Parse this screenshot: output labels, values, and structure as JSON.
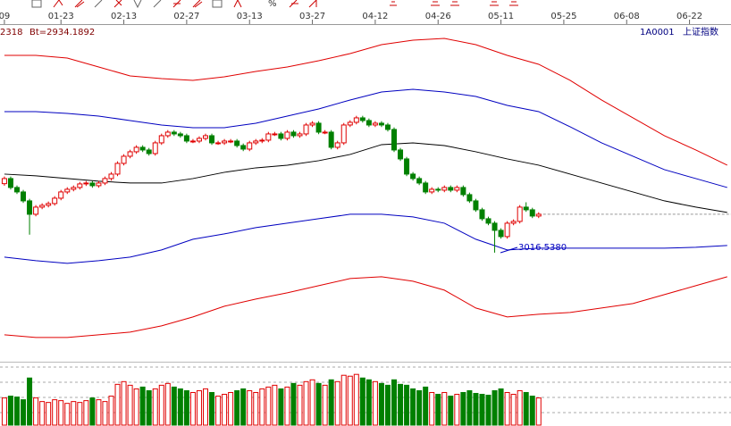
{
  "chart_data": {
    "type": "candlestick",
    "toolbar_label": "%",
    "left_code": "2318",
    "info": "Bt=2934.1892",
    "symbol": "1A0001",
    "name": "上证指数",
    "annotation": "3016.5380",
    "xlim": [
      -0.7,
      115.6
    ],
    "ylim": [
      2302,
      3622
    ],
    "vlim": [
      0,
      70
    ],
    "xticks": [
      {
        "value": 0,
        "label": "09"
      },
      {
        "value": 9,
        "label": "01-23"
      },
      {
        "value": 19,
        "label": "02-13"
      },
      {
        "value": 29,
        "label": "02-27"
      },
      {
        "value": 39,
        "label": "03-13"
      },
      {
        "value": 49,
        "label": "03-27"
      },
      {
        "value": 59,
        "label": "04-12"
      },
      {
        "value": 69,
        "label": "04-26"
      },
      {
        "value": 79,
        "label": "05-11"
      },
      {
        "value": 89,
        "label": "05-25"
      },
      {
        "value": 99,
        "label": "06-08"
      },
      {
        "value": 109,
        "label": "06-22"
      }
    ],
    "up_color": "#e00000",
    "down_color": "#008000",
    "open": [
      3000,
      3020,
      2985,
      2967.5,
      2932.5,
      2880,
      2908,
      2915,
      2922,
      2943,
      2967.5,
      2978,
      2985,
      2999,
      3002.5,
      2992,
      3002.5,
      3020,
      3037.5,
      3079.5,
      3107.5,
      3125,
      3142.5,
      3132,
      3118,
      3160,
      3188,
      3202,
      3195,
      3188,
      3167,
      3167,
      3177.5,
      3188,
      3160,
      3160,
      3167,
      3167,
      3149.5,
      3135.5,
      3160,
      3167,
      3170.5,
      3195,
      3195,
      3177.5,
      3202,
      3188,
      3195,
      3230,
      3237,
      3202,
      3202,
      3142.5,
      3160,
      3230,
      3240.5,
      3258,
      3247.5,
      3230,
      3237,
      3230,
      3212.5,
      3132,
      3097,
      3037.5,
      3020,
      3002.5,
      2967.5,
      2978,
      2974.5,
      2985,
      2974.5,
      2985,
      2957,
      2932.5,
      2897.5,
      2862.5,
      2845,
      2817,
      2792.5,
      2845,
      2852,
      2908,
      2897.5,
      2873
    ],
    "high": [
      3028,
      3028,
      2993,
      2975.5,
      2940.5,
      2916,
      2923,
      2930,
      2951,
      2975.5,
      2986,
      2993,
      3007,
      3010.5,
      3010.5,
      3010.5,
      3028,
      3045.5,
      3087.5,
      3115.5,
      3133,
      3150.5,
      3150.5,
      3140,
      3168,
      3196,
      3210,
      3210,
      3203,
      3196,
      3175,
      3185.5,
      3196,
      3196,
      3168,
      3175,
      3175,
      3175,
      3157.5,
      3168,
      3175,
      3178.5,
      3203,
      3203,
      3203,
      3210,
      3210,
      3203,
      3238,
      3245,
      3245,
      3210,
      3210,
      3168,
      3238,
      3248.5,
      3266,
      3266,
      3255.5,
      3245,
      3245,
      3238,
      3220.5,
      3140,
      3105,
      3045.5,
      3028,
      3010.5,
      2986,
      2986,
      2993,
      2993,
      2993,
      2993,
      2965,
      2940.5,
      2905.5,
      2870.5,
      2853,
      2825,
      2853,
      2860,
      2916,
      2927,
      2905.5,
      2888
    ],
    "low": [
      2992,
      2977,
      2959.5,
      2924.5,
      2800,
      2872,
      2900,
      2907,
      2914,
      2935,
      2959.5,
      2970,
      2977,
      2991,
      2984,
      2984,
      2994.5,
      3012,
      3029.5,
      3071.5,
      3099.5,
      3117,
      3124,
      3110,
      3110,
      3152,
      3180,
      3187,
      3180,
      3159,
      3159,
      3159,
      3169.5,
      3152,
      3152,
      3152,
      3159,
      3141.5,
      3127.5,
      3127.5,
      3152,
      3159,
      3162.5,
      3187,
      3169.5,
      3169.5,
      3180,
      3180,
      3187,
      3222,
      3194,
      3194,
      3134.5,
      3134.5,
      3152,
      3222,
      3232.5,
      3239.5,
      3222,
      3222,
      3222,
      3204.5,
      3124,
      3089,
      3029.5,
      3012,
      2994.5,
      2959.5,
      2959.5,
      2966.5,
      2966.5,
      2966.5,
      2966.5,
      2949,
      2924.5,
      2889.5,
      2854.5,
      2837,
      2729.5,
      2784.5,
      2784.5,
      2837,
      2844,
      2889.5,
      2865,
      2865
    ],
    "close": [
      3020,
      2985,
      2967.5,
      2932.5,
      2880,
      2908,
      2915,
      2922,
      2943,
      2967.5,
      2978,
      2985,
      2999,
      3002.5,
      2992,
      3002.5,
      3020,
      3037.5,
      3079.5,
      3107.5,
      3125,
      3142.5,
      3132,
      3118,
      3160,
      3188,
      3202,
      3195,
      3188,
      3167,
      3167,
      3177.5,
      3188,
      3160,
      3160,
      3167,
      3167,
      3149.5,
      3135.5,
      3160,
      3167,
      3170.5,
      3195,
      3195,
      3177.5,
      3202,
      3188,
      3195,
      3230,
      3237,
      3202,
      3202,
      3142.5,
      3160,
      3230,
      3240.5,
      3258,
      3247.5,
      3230,
      3237,
      3230,
      3212.5,
      3132,
      3097,
      3037.5,
      3020,
      3002.5,
      2967.5,
      2978,
      2974.5,
      2985,
      2974.5,
      2985,
      2957,
      2932.5,
      2897.5,
      2862.5,
      2845,
      2817,
      2792.5,
      2845,
      2852,
      2908,
      2897.5,
      2873,
      2880
    ],
    "volume": [
      30,
      32,
      31,
      28,
      52,
      30,
      26,
      25,
      28,
      27,
      24,
      26,
      25,
      27,
      30,
      28,
      26,
      32,
      45,
      48,
      44,
      40,
      42,
      38,
      40,
      44,
      46,
      42,
      40,
      38,
      36,
      38,
      40,
      36,
      32,
      34,
      36,
      38,
      40,
      38,
      36,
      40,
      42,
      44,
      40,
      42,
      46,
      44,
      48,
      50,
      46,
      44,
      50,
      48,
      55,
      54,
      56,
      52,
      50,
      48,
      46,
      44,
      50,
      45,
      44,
      40,
      38,
      42,
      36,
      34,
      36,
      32,
      34,
      36,
      38,
      35,
      34,
      33,
      38,
      40,
      36,
      34,
      38,
      36,
      32,
      30
    ],
    "bands": [
      {
        "color": "#e00000",
        "x": [
          0,
          5,
          10,
          15,
          20,
          25,
          30,
          35,
          40,
          45,
          50,
          55,
          60,
          65,
          70,
          75,
          80,
          85,
          90,
          95,
          100,
          105,
          110,
          115
        ],
        "values": [
          3503,
          3503,
          3492.5,
          3457.5,
          3422.5,
          3412,
          3405,
          3419,
          3440,
          3457.5,
          3482,
          3510,
          3545,
          3562.5,
          3569.5,
          3545,
          3503,
          3468,
          3405,
          3328,
          3258,
          3188,
          3132,
          3072.5
        ]
      },
      {
        "color": "#0000c0",
        "x": [
          0,
          5,
          10,
          15,
          20,
          25,
          30,
          35,
          40,
          45,
          50,
          55,
          60,
          65,
          70,
          75,
          80,
          85,
          90,
          95,
          100,
          105,
          110,
          115
        ],
        "values": [
          3282.5,
          3282.5,
          3275.5,
          3265,
          3247.5,
          3230,
          3219.5,
          3219.5,
          3237,
          3265,
          3293,
          3328,
          3359.5,
          3370,
          3359.5,
          3342,
          3307,
          3282.5,
          3223,
          3160,
          3107.5,
          3055,
          3020,
          2985
        ]
      },
      {
        "color": "#000000",
        "x": [
          0,
          5,
          10,
          15,
          20,
          25,
          30,
          35,
          40,
          45,
          50,
          55,
          60,
          65,
          70,
          75,
          80,
          85,
          90,
          95,
          100,
          105,
          110,
          115
        ],
        "values": [
          3037.5,
          3030.5,
          3020,
          3009.5,
          3002.5,
          3002.5,
          3020,
          3044.5,
          3062,
          3072.5,
          3090,
          3114.5,
          3153,
          3160,
          3149.5,
          3125,
          3097,
          3072.5,
          3037.5,
          3002.5,
          2967.5,
          2932.5,
          2908,
          2887
        ]
      },
      {
        "color": "#0000c0",
        "x": [
          0,
          5,
          10,
          15,
          20,
          25,
          30,
          35,
          40,
          45,
          50,
          55,
          60,
          65,
          70,
          75,
          80,
          85,
          90,
          95,
          100,
          105,
          110,
          115
        ],
        "values": [
          2712,
          2698,
          2687.5,
          2698,
          2712,
          2740,
          2782,
          2803,
          2827.5,
          2845,
          2862.5,
          2880,
          2880,
          2869.5,
          2845,
          2782,
          2740,
          2747,
          2747,
          2747,
          2747,
          2747,
          2750.5,
          2757.5
        ]
      },
      {
        "color": "#e00000",
        "x": [
          0,
          5,
          10,
          15,
          20,
          25,
          30,
          35,
          40,
          45,
          50,
          55,
          60,
          65,
          70,
          75,
          80,
          85,
          90,
          95,
          100,
          105,
          110,
          115
        ],
        "values": [
          2407.5,
          2397,
          2397,
          2407.5,
          2418,
          2442.5,
          2477.5,
          2519.5,
          2547.5,
          2572,
          2600,
          2628,
          2635,
          2617.5,
          2582.5,
          2512.5,
          2477.5,
          2488,
          2495,
          2512.5,
          2530,
          2565,
          2600,
          2635
        ]
      }
    ]
  }
}
